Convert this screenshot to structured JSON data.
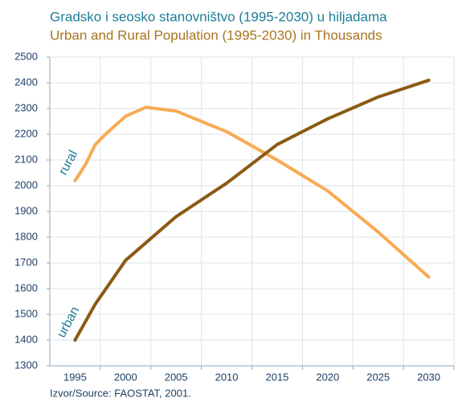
{
  "chart_data": {
    "type": "line",
    "title": "Gradsko i seosko stanovništvo (1995-2030) u hiljadama",
    "subtitle": "Urban and Rural Population (1995-2030) in Thousands",
    "source": "Izvor/Source: FAOSTAT, 2001.",
    "series": [
      {
        "name": "rural",
        "color": "#f7ab52",
        "x": [
          1995,
          1996,
          1997,
          1998,
          2000,
          2002,
          2005,
          2010,
          2015,
          2020,
          2025,
          2030
        ],
        "values": [
          2020,
          2080,
          2160,
          2200,
          2270,
          2305,
          2290,
          2210,
          2100,
          1980,
          1820,
          1645
        ]
      },
      {
        "name": "urban",
        "color": "#8b5a14",
        "x": [
          1995,
          1997,
          2000,
          2005,
          2010,
          2015,
          2020,
          2025,
          2030
        ],
        "values": [
          1400,
          1540,
          1710,
          1880,
          2010,
          2160,
          2260,
          2345,
          2410
        ]
      }
    ],
    "xlim": [
      1992.5,
      2032.5
    ],
    "xticks": [
      1995,
      2000,
      2005,
      2010,
      2015,
      2020,
      2025,
      2030
    ],
    "ylim": [
      1300,
      2500
    ],
    "yticks": [
      1300,
      1400,
      1500,
      1600,
      1700,
      1800,
      1900,
      2000,
      2100,
      2200,
      2300,
      2400,
      2500
    ],
    "grid": true
  }
}
